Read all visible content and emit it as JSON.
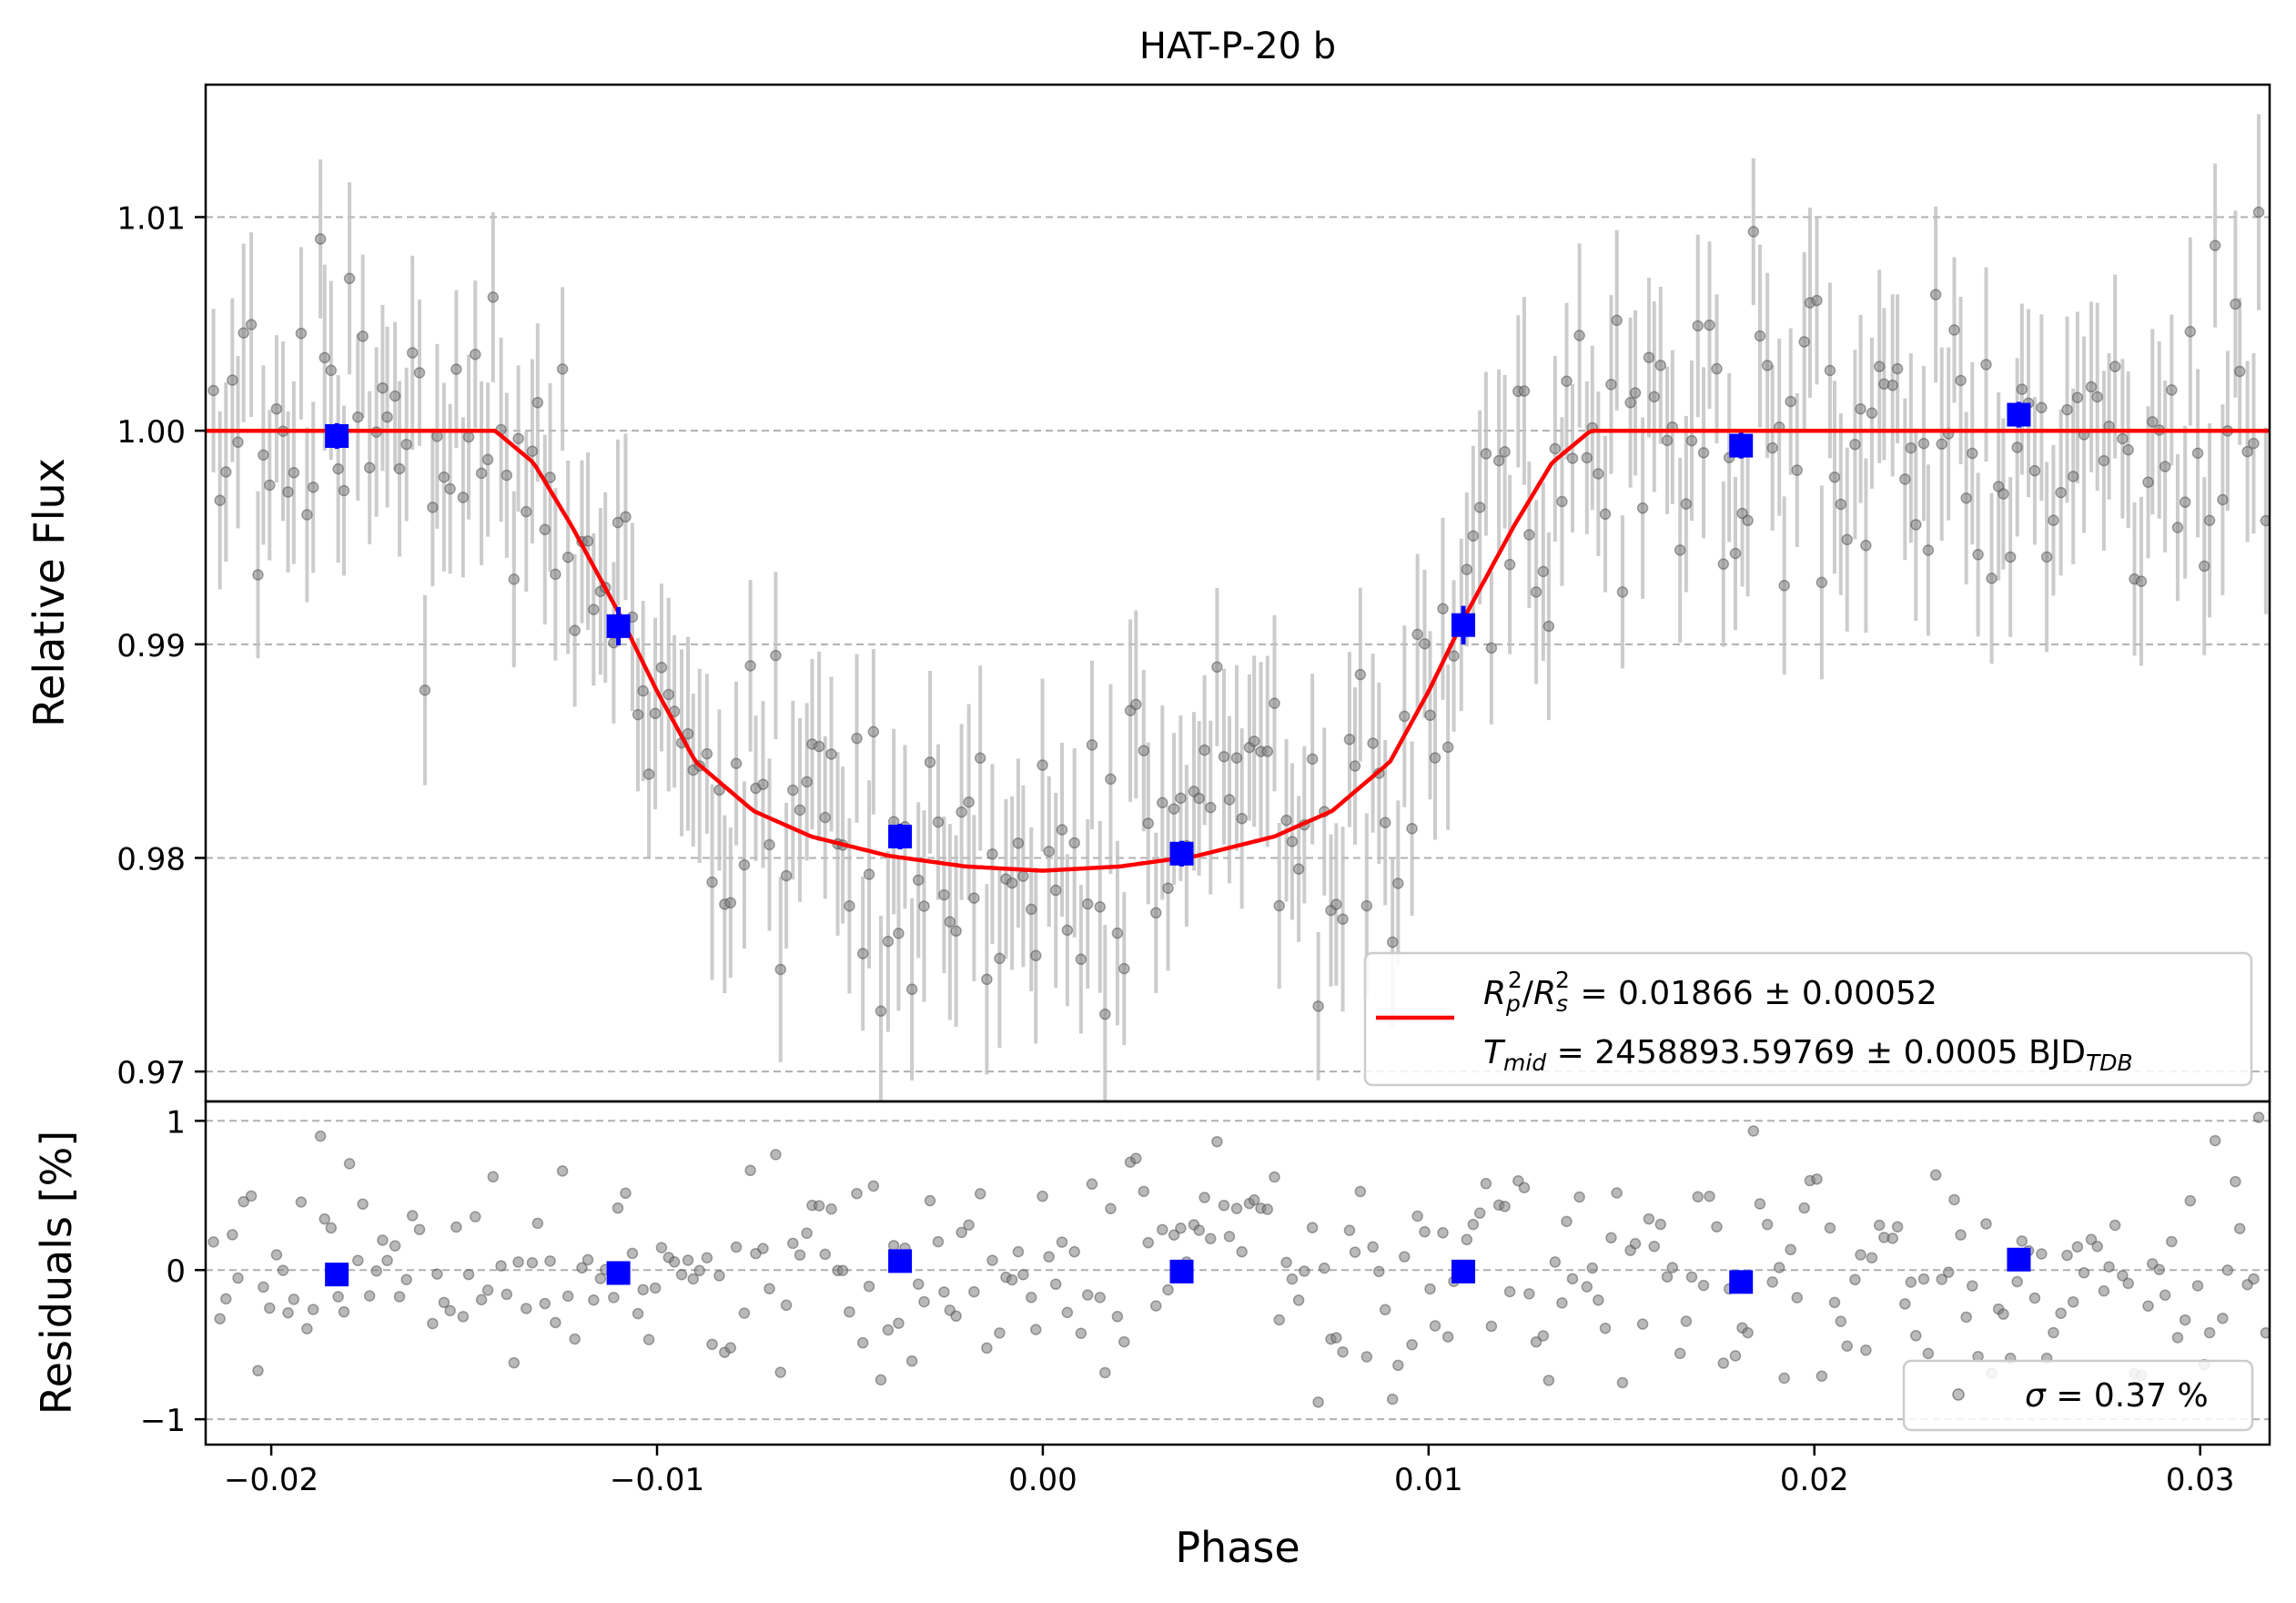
{
  "chart_data": [
    {
      "panel": "top",
      "type": "scatter",
      "title": "HAT-P-20 b",
      "xlabel": "",
      "ylabel": "Relative Flux",
      "xlim": [
        -0.0217,
        0.0318
      ],
      "ylim": [
        0.9686,
        1.0162
      ],
      "grid": "y-dashed",
      "yticks": [
        {
          "value": 0.97,
          "label": "0.97"
        },
        {
          "value": 0.98,
          "label": "0.98"
        },
        {
          "value": 0.99,
          "label": "0.99"
        },
        {
          "value": 1.0,
          "label": "1.00"
        },
        {
          "value": 1.01,
          "label": "1.01"
        }
      ],
      "model": {
        "color": "#ff0000",
        "points": [
          [
            -0.0217,
            1.0
          ],
          [
            -0.0142,
            1.0
          ],
          [
            -0.0132,
            0.9985
          ],
          [
            -0.0122,
            0.9955
          ],
          [
            -0.011,
            0.9915
          ],
          [
            -0.01,
            0.9878
          ],
          [
            -0.009,
            0.9845
          ],
          [
            -0.0075,
            0.9822
          ],
          [
            -0.006,
            0.981
          ],
          [
            -0.004,
            0.9801
          ],
          [
            -0.002,
            0.9796
          ],
          [
            0.0,
            0.9794
          ],
          [
            0.002,
            0.9796
          ],
          [
            0.004,
            0.9801
          ],
          [
            0.006,
            0.981
          ],
          [
            0.0075,
            0.9822
          ],
          [
            0.009,
            0.9845
          ],
          [
            0.01,
            0.9878
          ],
          [
            0.011,
            0.9915
          ],
          [
            0.0122,
            0.9955
          ],
          [
            0.0132,
            0.9985
          ],
          [
            0.0142,
            1.0
          ],
          [
            0.0318,
            1.0
          ]
        ]
      },
      "binned": {
        "color": "#0000ff",
        "points": [
          [
            -0.0183,
            0.99975,
            0.0006
          ],
          [
            -0.011,
            0.99085,
            0.0009
          ],
          [
            -0.0037,
            0.981,
            0.0006
          ],
          [
            0.0036,
            0.9802,
            0.0006
          ],
          [
            0.0109,
            0.9909,
            0.0009
          ],
          [
            0.0181,
            0.9993,
            0.0006
          ],
          [
            0.0253,
            1.00075,
            0.0006
          ]
        ]
      },
      "legend": {
        "position": "lower right",
        "line1_math": "R",
        "line1_sub1": "p",
        "line1_sup1": "2",
        "line1_slash": "/",
        "line1_sub2": "s",
        "line1_sup2": "2",
        "line1_value": " = 0.01866 ± 0.00052",
        "line2_math": "T",
        "line2_sub": "mid",
        "line2_value": " = 2458893.59769 ± 0.0005 BJD",
        "line2_unit_sub": "TDB"
      }
    },
    {
      "panel": "bottom",
      "type": "scatter",
      "xlabel": "Phase",
      "ylabel": "Residuals [%]",
      "xlim": [
        -0.0217,
        0.0318
      ],
      "ylim": [
        -1.17,
        1.13
      ],
      "grid": "y-dashed",
      "yticks": [
        {
          "value": -1,
          "label": "−1"
        },
        {
          "value": 0,
          "label": "0"
        },
        {
          "value": 1,
          "label": "1"
        }
      ],
      "xticks": [
        {
          "value": -0.02,
          "label": "−0.02"
        },
        {
          "value": -0.01,
          "label": "−0.01"
        },
        {
          "value": 0.0,
          "label": "0.00"
        },
        {
          "value": 0.01,
          "label": "0.01"
        },
        {
          "value": 0.02,
          "label": "0.02"
        },
        {
          "value": 0.03,
          "label": "0.03"
        }
      ],
      "binned": {
        "color": "#0000ff",
        "points": [
          [
            -0.0183,
            -0.03
          ],
          [
            -0.011,
            -0.02
          ],
          [
            -0.0037,
            0.06
          ],
          [
            0.0036,
            -0.01
          ],
          [
            0.0109,
            -0.01
          ],
          [
            0.0181,
            -0.08
          ],
          [
            0.0253,
            0.07
          ]
        ]
      },
      "legend": {
        "position": "lower right",
        "symbol": "σ",
        "text": " = 0.37 %"
      }
    }
  ]
}
